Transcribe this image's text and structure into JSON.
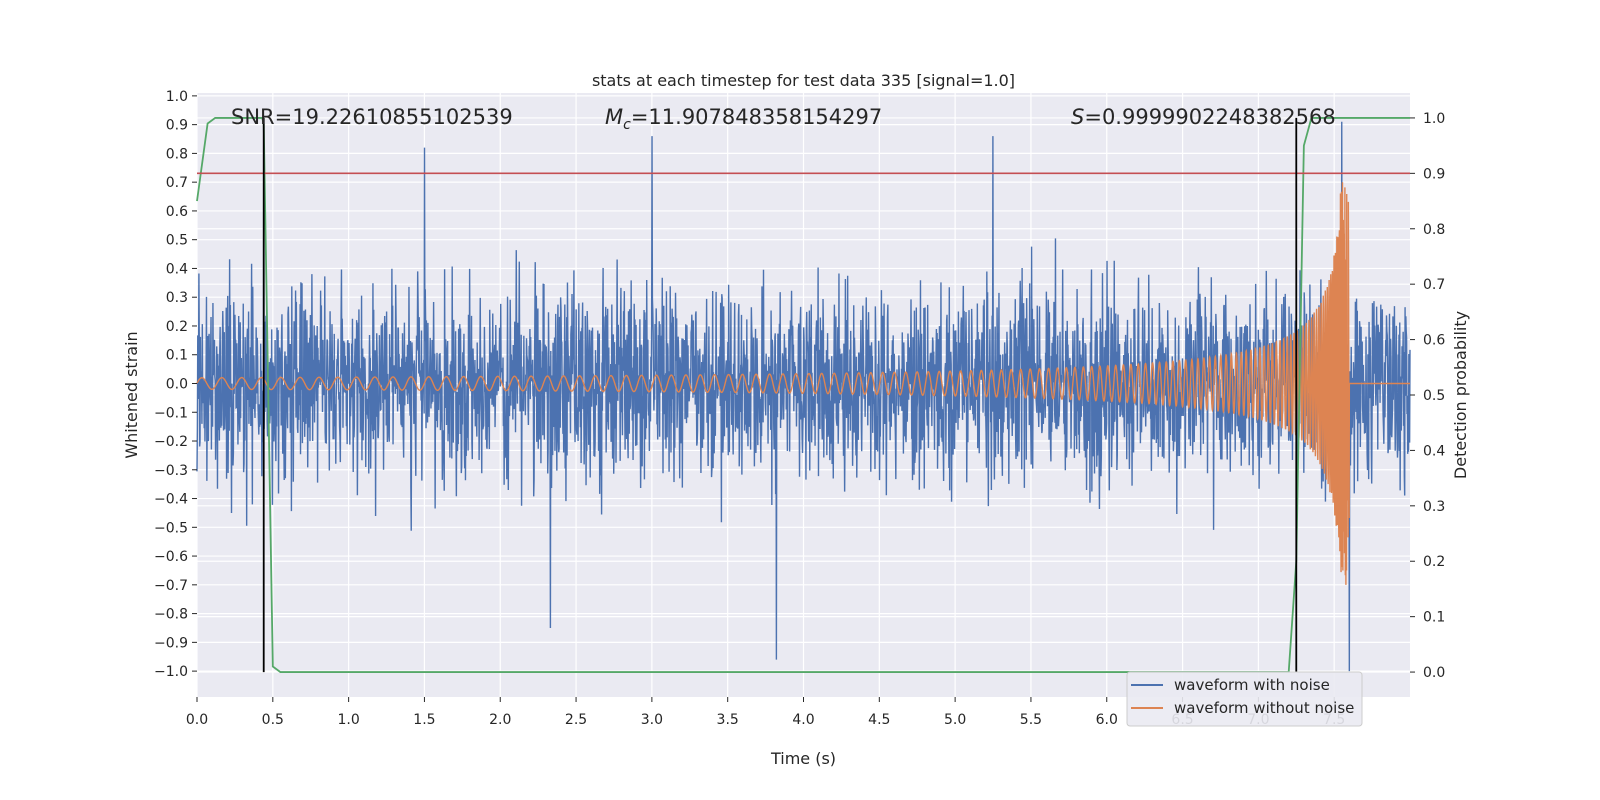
{
  "chart_data": {
    "type": "line",
    "title": "stats at each timestep for test data 335 [signal=1.0]",
    "xlabel": "Time (s)",
    "ylabel": "Whitened strain",
    "y2label": "Detection probability",
    "xlim": [
      0.0,
      8.0
    ],
    "ylim": [
      -1.09,
      1.01
    ],
    "y2lim": [
      -0.045,
      1.045
    ],
    "xticks": [
      "0.0",
      "0.5",
      "1.0",
      "1.5",
      "2.0",
      "2.5",
      "3.0",
      "3.5",
      "4.0",
      "4.5",
      "5.0",
      "5.5",
      "6.0",
      "6.5",
      "7.0",
      "7.5"
    ],
    "yticks": [
      "1.0",
      "0.9",
      "0.8",
      "0.7",
      "0.6",
      "0.5",
      "0.4",
      "0.3",
      "0.2",
      "0.1",
      "0.0",
      "−0.1",
      "−0.2",
      "−0.3",
      "−0.4",
      "−0.5",
      "−0.6",
      "−0.7",
      "−0.8",
      "−0.9",
      "−1.0"
    ],
    "y2ticks": [
      "1.0",
      "0.9",
      "0.8",
      "0.7",
      "0.6",
      "0.5",
      "0.4",
      "0.3",
      "0.2",
      "0.1",
      "0.0"
    ],
    "annotations": {
      "snr": "SNR=19.22610855102539",
      "mc_symbol": "M",
      "mc_sub": "c",
      "mc_value": "=11.907848358154297",
      "s_symbol": "S",
      "s_value": "=0.9999902248382568"
    },
    "grid": true,
    "legend_position": "lower-right",
    "series": [
      {
        "name": "waveform with noise",
        "color": "#4c72b0",
        "axis": "left",
        "noise_envelope": [
          0.7,
          -0.8
        ],
        "peaks": [
          {
            "x": 0.44,
            "y": 0.74
          },
          {
            "x": 1.5,
            "y": 0.82
          },
          {
            "x": 3.0,
            "y": 0.86
          },
          {
            "x": 5.25,
            "y": 0.86
          },
          {
            "x": 7.55,
            "y": 0.91
          },
          {
            "x": 2.33,
            "y": -0.85
          },
          {
            "x": 3.82,
            "y": -0.96
          },
          {
            "x": 7.6,
            "y": -1.0
          }
        ]
      },
      {
        "name": "waveform without noise",
        "color": "#dd8452",
        "axis": "left",
        "chirp": {
          "start": 0.0,
          "merger": 7.6,
          "amp_start": 0.02,
          "amp_peak": 0.7,
          "end": 8.0
        }
      },
      {
        "name": "Detection probability",
        "color": "#55a868",
        "axis": "right",
        "x": [
          0.0,
          0.07,
          0.12,
          0.43,
          0.44,
          0.5,
          0.55,
          7.2,
          7.25,
          7.3,
          7.35,
          8.0
        ],
        "values": [
          0.85,
          0.99,
          1.0,
          1.0,
          0.99,
          0.01,
          0.0,
          0.0,
          0.2,
          0.95,
          1.0,
          1.0
        ]
      }
    ],
    "threshold": {
      "axis": "right",
      "value": 0.9,
      "color": "#c44e52"
    },
    "vlines": [
      {
        "x": 0.44,
        "color": "#000000"
      },
      {
        "x": 7.25,
        "color": "#000000"
      }
    ],
    "style": {
      "background": "#eaeaf2",
      "grid_color": "#ffffff",
      "text_color": "#262626"
    }
  }
}
